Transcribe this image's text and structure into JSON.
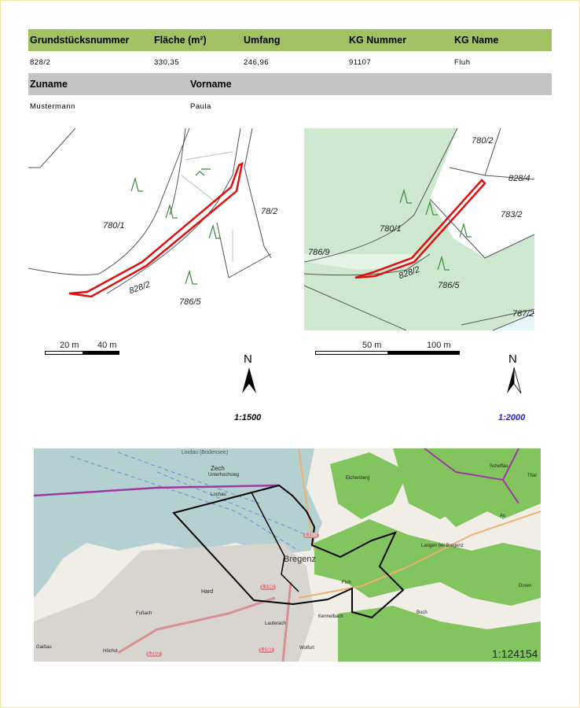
{
  "parcel_table": {
    "headers": [
      "Grundstücksnummer",
      "Fläche (m²)",
      "Umfang",
      "KG Nummer",
      "KG Name"
    ],
    "row": [
      "828/2",
      "330,35",
      "246,96",
      "91107",
      "Fluh"
    ]
  },
  "owner_table": {
    "headers": [
      "Zuname",
      "Vorname"
    ],
    "row": [
      "Mustermann",
      "Paula"
    ]
  },
  "map_left": {
    "parcel_labels": [
      "780/1",
      "786/5",
      "828/2",
      "78/2"
    ],
    "scalebar": [
      "20 m",
      "40 m"
    ],
    "north": "N",
    "scale": "1:1500",
    "scale_color": "#000000"
  },
  "map_right": {
    "parcel_labels": [
      "780/2",
      "828/4",
      "783/2",
      "780/1",
      "786/9",
      "828/2",
      "786/5",
      "787/2"
    ],
    "scalebar": [
      "50 m",
      "100 m"
    ],
    "north": "N",
    "scale": "1:2000",
    "scale_color": "#1a1aff"
  },
  "overview_map": {
    "places": [
      "Lindau (Bodensee)",
      "Zech",
      "Unterhochsteg",
      "Lochau",
      "Eichenberg",
      "Scheffau",
      "Thal",
      "Au",
      "Bregenz",
      "Langen bei Bregenz",
      "Hard",
      "Fußach",
      "Fluh",
      "Doren",
      "Buch",
      "Lauterach",
      "Kennelbach",
      "Wolfurt",
      "Höchst",
      "Gaißau"
    ],
    "roads": [
      "L190",
      "L190",
      "L190",
      "L202"
    ],
    "scale": "1:124154"
  },
  "colors": {
    "header_green": "#a0c263",
    "header_gray": "#c4c4c4",
    "parcel_outline": "#e01010",
    "green_area": "#cde8cf",
    "forest": "#82c45e",
    "lake": "#b5d0d0"
  }
}
